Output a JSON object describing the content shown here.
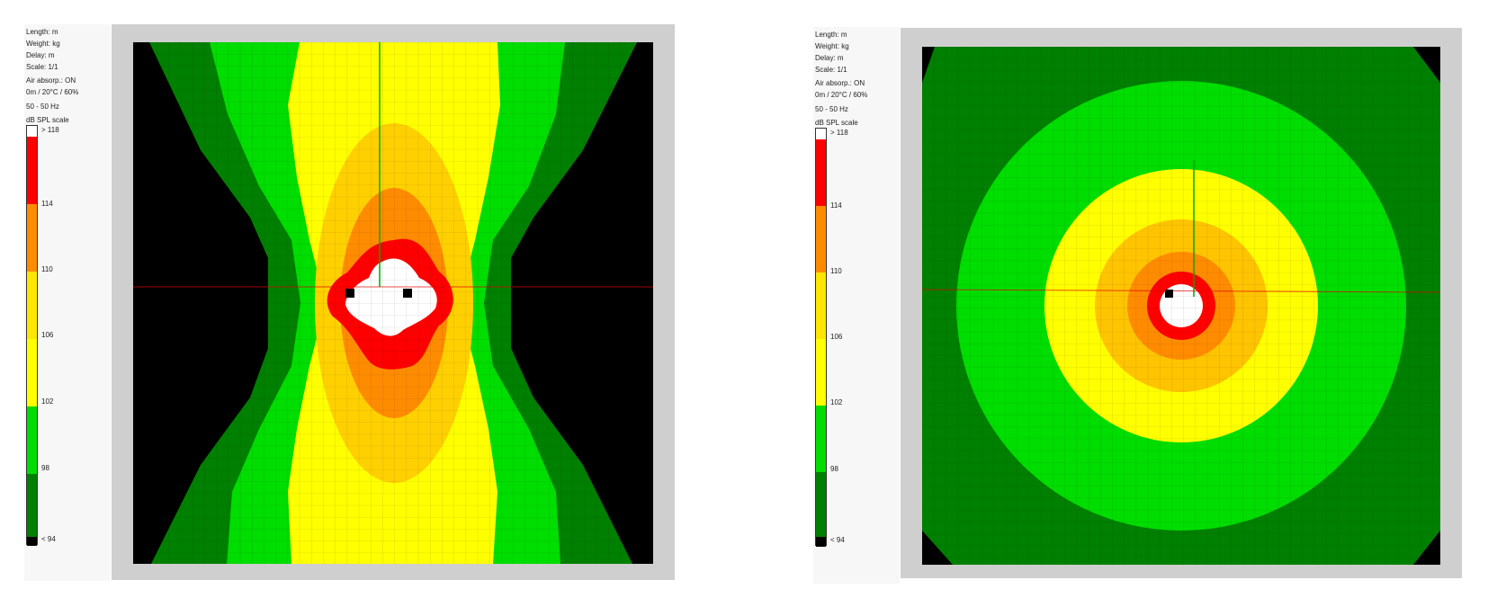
{
  "panels": [
    {
      "meta": {
        "length": "Length: m",
        "weight": "Weight: kg",
        "delay": "Delay: m",
        "scale": "Scale: 1/1",
        "air": "Air absorp.: ON",
        "conditions": "0m / 20°C / 60%",
        "freq": "50 - 50 Hz",
        "scale_title": "dB SPL scale"
      },
      "scale_labels": [
        "> 118",
        "114",
        "110",
        "106",
        "102",
        "98",
        "< 94"
      ]
    },
    {
      "meta": {
        "length": "Length: m",
        "weight": "Weight: kg",
        "delay": "Delay: m",
        "scale": "Scale: 1/1",
        "air": "Air absorp.: ON",
        "conditions": "0m / 20°C / 60%",
        "freq": "50 - 50 Hz",
        "scale_title": "dB SPL scale"
      },
      "scale_labels": [
        "> 118",
        "114",
        "110",
        "106",
        "102",
        "98",
        "< 94"
      ]
    }
  ],
  "colors": {
    "white": "#ffffff",
    "red": "#ff0000",
    "orange": "#ff8c00",
    "light_orange": "#ffc400",
    "yellow": "#ffff00",
    "green": "#00dd00",
    "dark_green": "#008000",
    "black": "#000000",
    "frame_gray": "#cfcfcf",
    "crosshair_green": "#00aa00",
    "crosshair_red": "#dd0000"
  }
}
